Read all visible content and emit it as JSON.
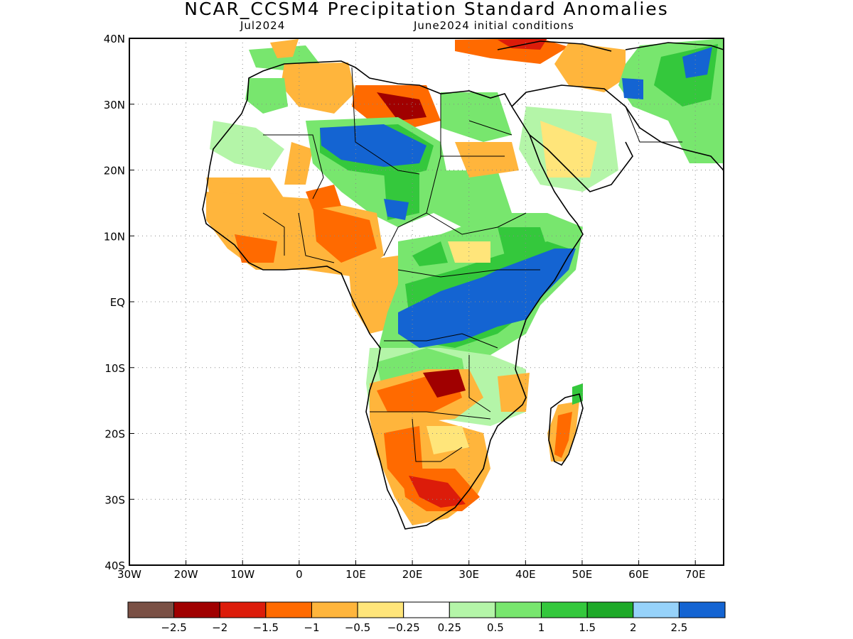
{
  "title": "NCAR_CCSM4 Precipitation Standard Anomalies",
  "subtitle_left": "Jul2024",
  "subtitle_right": "June2024 initial conditions",
  "map": {
    "lon_range": [
      -30,
      75
    ],
    "lat_range": [
      -40,
      40
    ],
    "x_ticks": [
      {
        "value": -30,
        "label": "30W"
      },
      {
        "value": -20,
        "label": "20W"
      },
      {
        "value": -10,
        "label": "10W"
      },
      {
        "value": 0,
        "label": "0"
      },
      {
        "value": 10,
        "label": "10E"
      },
      {
        "value": 20,
        "label": "20E"
      },
      {
        "value": 30,
        "label": "30E"
      },
      {
        "value": 40,
        "label": "40E"
      },
      {
        "value": 50,
        "label": "50E"
      },
      {
        "value": 60,
        "label": "60E"
      },
      {
        "value": 70,
        "label": "70E"
      }
    ],
    "y_ticks": [
      {
        "value": 40,
        "label": "40N"
      },
      {
        "value": 30,
        "label": "30N"
      },
      {
        "value": 20,
        "label": "20N"
      },
      {
        "value": 10,
        "label": "10N"
      },
      {
        "value": 0,
        "label": "EQ"
      },
      {
        "value": -10,
        "label": "10S"
      },
      {
        "value": -20,
        "label": "20S"
      },
      {
        "value": -30,
        "label": "30S"
      },
      {
        "value": -40,
        "label": "40S"
      }
    ],
    "grid": "dotted"
  },
  "colorbar": {
    "colors": [
      "#7a5045",
      "#a00000",
      "#dc1c0a",
      "#ff6a00",
      "#ffb53c",
      "#ffe57a",
      "#ffffff",
      "#b4f5a8",
      "#78e66e",
      "#34c83c",
      "#1ea928",
      "#96d2fa",
      "#1464d2"
    ],
    "labels": [
      "−2.5",
      "−2",
      "−1.5",
      "−1",
      "−0.5",
      "−0.25",
      "0.25",
      "0.5",
      "1",
      "1.5",
      "2",
      "2.5"
    ]
  },
  "colors": {
    "strong_dry": "#a00000",
    "dry": "#ff6a00",
    "moderate_dry": "#ffb53c",
    "wet": "#78e66e",
    "strong_wet": "#1464d2"
  }
}
